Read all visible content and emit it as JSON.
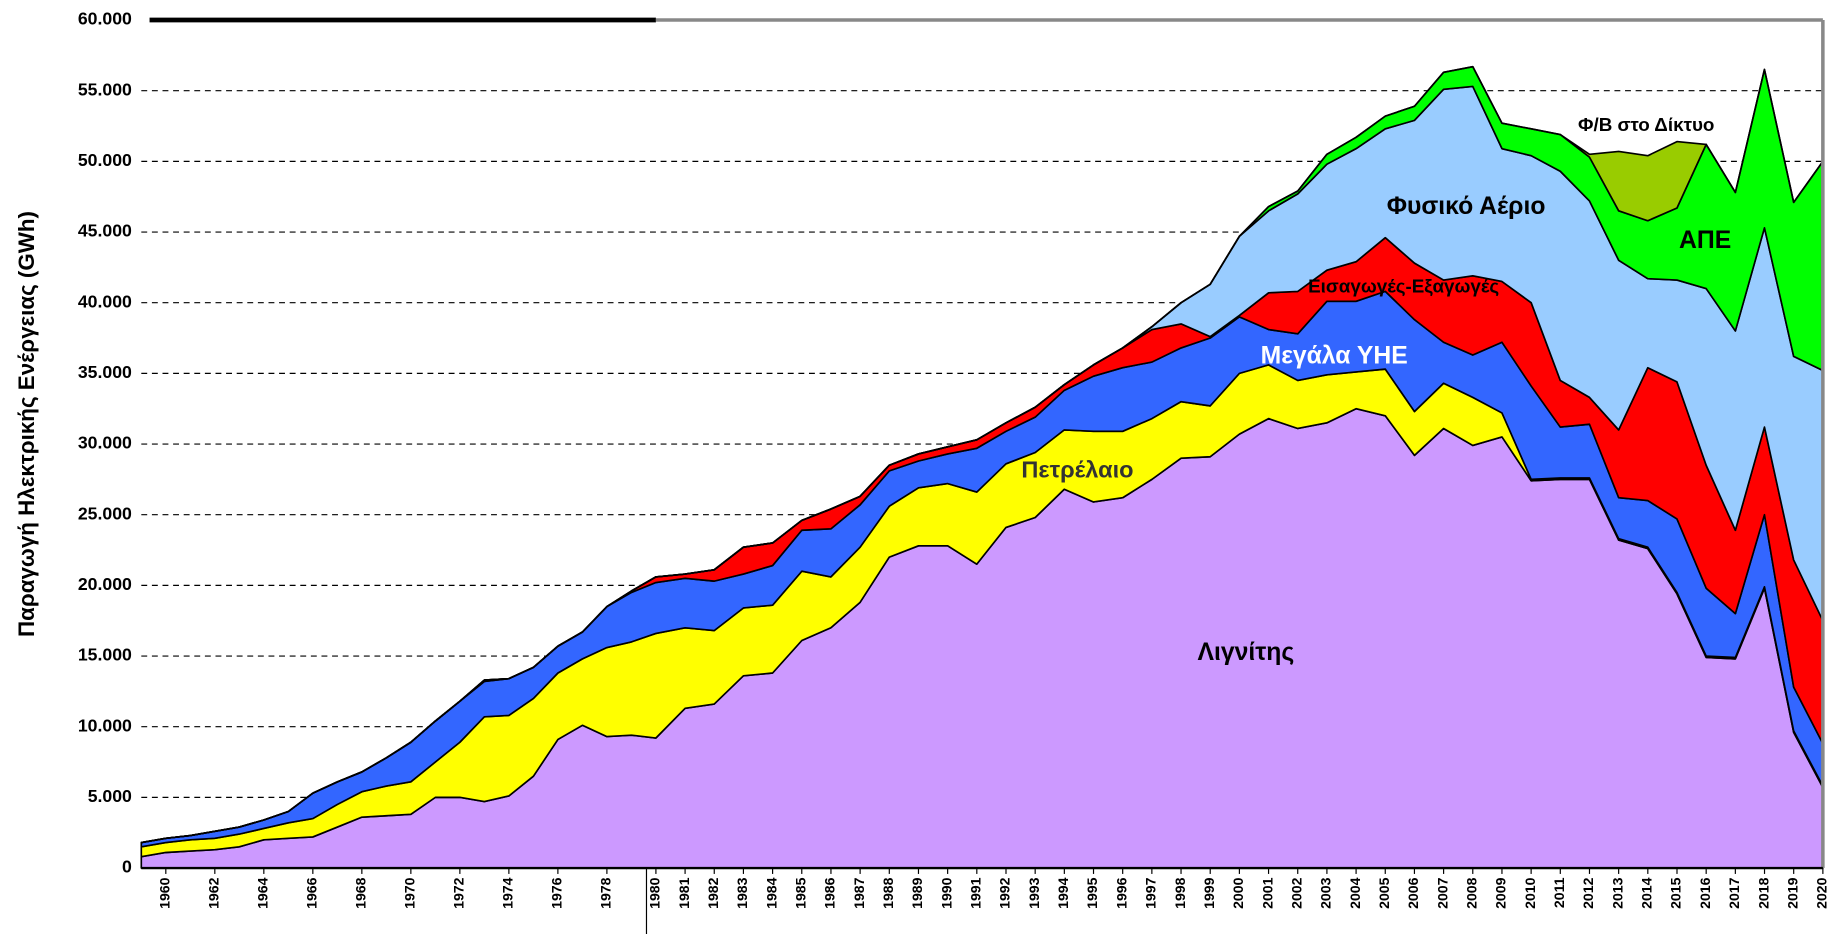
{
  "chart_data": {
    "type": "stacked-area",
    "y_label": "Παραγωγή Ηλεκτρικής Ενέργειας  (GWh)",
    "x": [
      1959,
      1960,
      1961,
      1962,
      1963,
      1964,
      1965,
      1966,
      1967,
      1968,
      1969,
      1970,
      1971,
      1972,
      1973,
      1974,
      1975,
      1976,
      1977,
      1978,
      1979,
      1980,
      1981,
      1982,
      1983,
      1984,
      1985,
      1986,
      1987,
      1988,
      1989,
      1990,
      1991,
      1992,
      1993,
      1994,
      1995,
      1996,
      1997,
      1998,
      1999,
      2000,
      2001,
      2002,
      2003,
      2004,
      2005,
      2006,
      2007,
      2008,
      2009,
      2010,
      2011,
      2012,
      2013,
      2014,
      2015,
      2016,
      2017,
      2018,
      2019,
      2020
    ],
    "xlim": [
      1959,
      2020
    ],
    "xticks": [
      1960,
      1962,
      1964,
      1966,
      1968,
      1970,
      1972,
      1974,
      1976,
      1978,
      1980,
      1981,
      1982,
      1983,
      1984,
      1985,
      1986,
      1987,
      1988,
      1989,
      1990,
      1991,
      1992,
      1993,
      1994,
      1995,
      1996,
      1997,
      1998,
      1999,
      2000,
      2001,
      2002,
      2003,
      2004,
      2005,
      2006,
      2007,
      2008,
      2009,
      2010,
      2011,
      2012,
      2013,
      2014,
      2015,
      2016,
      2017,
      2018,
      2019,
      2020
    ],
    "ylim": [
      0,
      60000
    ],
    "yticks": [
      0,
      {
        "value": 5000,
        "label": "5.000"
      },
      {
        "value": 10000,
        "label": "10.000"
      },
      {
        "value": 15000,
        "label": "15.000"
      },
      {
        "value": 20000,
        "label": "20.000"
      },
      {
        "value": 25000,
        "label": "25.000"
      },
      {
        "value": 30000,
        "label": "30.000"
      },
      {
        "value": 35000,
        "label": "35.000"
      },
      {
        "value": 40000,
        "label": "40.000"
      },
      {
        "value": 45000,
        "label": "45.000"
      },
      {
        "value": 50000,
        "label": "50.000"
      },
      {
        "value": 55000,
        "label": "55.000"
      },
      {
        "value": 60000,
        "label": "60.000"
      }
    ],
    "grid": true,
    "series": [
      {
        "name": "Λιγνίτης",
        "color": "#cc99ff",
        "values": [
          800,
          1100,
          1200,
          1300,
          1500,
          2000,
          2100,
          2200,
          2900,
          3600,
          3700,
          3800,
          5000,
          5000,
          4700,
          5100,
          6500,
          9100,
          10100,
          9300,
          9400,
          9200,
          11300,
          11600,
          13600,
          13800,
          16100,
          17000,
          18800,
          22000,
          22800,
          22800,
          21500,
          24100,
          24800,
          26800,
          25900,
          26200,
          27500,
          29000,
          29100,
          30700,
          31800,
          31100,
          31500,
          32500,
          32000,
          29200,
          31100,
          29900,
          30500,
          27400,
          27500,
          27500,
          23200,
          22600,
          19400,
          14900,
          14800,
          19800,
          9600,
          5700
        ]
      },
      {
        "name": "Πετρέλαιο",
        "color": "#ffff00",
        "values": [
          700,
          700,
          800,
          800,
          900,
          800,
          1100,
          1300,
          1600,
          1800,
          2100,
          2300,
          2500,
          3900,
          6000,
          5700,
          5500,
          4700,
          4700,
          6300,
          6600,
          7400,
          5700,
          5200,
          4800,
          4800,
          4900,
          3600,
          3900,
          3600,
          4100,
          4400,
          5100,
          4500,
          4600,
          4200,
          5000,
          4700,
          4300,
          4000,
          3600,
          4300,
          3800,
          3400,
          3400,
          2600,
          3300,
          3100,
          3200,
          3400,
          1700,
          100,
          100,
          100,
          100,
          100,
          100,
          100,
          100,
          100,
          100,
          100
        ]
      },
      {
        "name": "Μεγάλα ΥΗΕ",
        "color": "#3366ff",
        "values": [
          300,
          300,
          300,
          500,
          500,
          600,
          800,
          1800,
          1600,
          1400,
          2000,
          2800,
          2900,
          2900,
          2500,
          2600,
          2200,
          1900,
          1900,
          2900,
          3500,
          3600,
          3500,
          3500,
          2400,
          2800,
          2900,
          3400,
          3000,
          2500,
          1900,
          2100,
          3100,
          2300,
          2500,
          2800,
          3900,
          4500,
          4000,
          3800,
          4800,
          4000,
          2500,
          3300,
          5200,
          5000,
          5500,
          6500,
          2900,
          3000,
          5000,
          6600,
          3600,
          3800,
          2900,
          3300,
          5200,
          4800,
          3100,
          5100,
          3100,
          3000
        ]
      },
      {
        "name": "Εισαγωγές-Εξαγωγές",
        "color": "#ff0000",
        "values": [
          0,
          0,
          0,
          0,
          0,
          0,
          0,
          0,
          0,
          0,
          0,
          0,
          0,
          0,
          100,
          0,
          0,
          0,
          0,
          0,
          100,
          400,
          300,
          800,
          1900,
          1600,
          700,
          1400,
          600,
          400,
          500,
          500,
          600,
          600,
          700,
          400,
          800,
          1400,
          2300,
          1700,
          100,
          100,
          2600,
          3000,
          2200,
          2800,
          3800,
          4000,
          4400,
          5600,
          4300,
          5900,
          3300,
          1900,
          4800,
          9400,
          9700,
          8700,
          5900,
          6200,
          9000,
          8700
        ]
      },
      {
        "name": "Φυσικό Αέριο",
        "color": "#99ccff",
        "values": [
          0,
          0,
          0,
          0,
          0,
          0,
          0,
          0,
          0,
          0,
          0,
          0,
          0,
          0,
          0,
          0,
          0,
          0,
          0,
          0,
          0,
          0,
          0,
          0,
          0,
          0,
          0,
          0,
          0,
          0,
          0,
          0,
          0,
          0,
          0,
          0,
          0,
          0,
          200,
          1500,
          3700,
          5600,
          5800,
          6900,
          7500,
          8000,
          7700,
          10100,
          13500,
          13400,
          9400,
          10400,
          14800,
          13900,
          12000,
          6300,
          7200,
          12500,
          14100,
          14100,
          14400,
          17700
        ]
      },
      {
        "name": "ΑΠΕ",
        "color": "#00ff00",
        "values": [
          0,
          0,
          0,
          0,
          0,
          0,
          0,
          0,
          0,
          0,
          0,
          0,
          0,
          0,
          0,
          0,
          0,
          0,
          0,
          0,
          0,
          0,
          0,
          0,
          0,
          0,
          0,
          0,
          0,
          0,
          0,
          0,
          0,
          0,
          0,
          0,
          0,
          0,
          0,
          0,
          0,
          0,
          300,
          200,
          700,
          800,
          900,
          1000,
          1200,
          1400,
          1800,
          1900,
          2600,
          3100,
          3500,
          4100,
          5100,
          10200,
          9800,
          11200,
          10900,
          14800
        ]
      },
      {
        "name": "Φ/Β στο Δίκτυο",
        "color": "#99cc00",
        "values": [
          0,
          0,
          0,
          0,
          0,
          0,
          0,
          0,
          0,
          0,
          0,
          0,
          0,
          0,
          0,
          0,
          0,
          0,
          0,
          0,
          0,
          0,
          0,
          0,
          0,
          0,
          0,
          0,
          0,
          0,
          0,
          0,
          0,
          0,
          0,
          0,
          0,
          0,
          0,
          0,
          0,
          0,
          0,
          0,
          0,
          0,
          0,
          0,
          0,
          0,
          0,
          0,
          0,
          200,
          4200,
          4600,
          4700,
          0,
          0,
          0,
          0,
          0
        ]
      }
    ]
  }
}
